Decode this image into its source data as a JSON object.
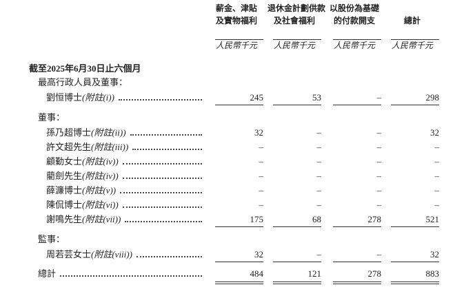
{
  "header": {
    "columns": [
      {
        "lines": [
          "薪金、津貼",
          "及實物福利"
        ],
        "unit": "人民幣千元"
      },
      {
        "lines": [
          "退休金計劃供款",
          "及社會福利"
        ],
        "unit": "人民幣千元"
      },
      {
        "lines": [
          "以股份為基礎",
          "的付款開支"
        ],
        "unit": "人民幣千元"
      },
      {
        "lines": [
          "總計"
        ],
        "unit": "人民幣千元"
      }
    ]
  },
  "period": "截至2025年6月30日止六個月",
  "groups": [
    {
      "label": "最高行政人員及董事：",
      "rows": [
        {
          "name": "劉恒博士",
          "note": "(附註(i))",
          "values": [
            "245",
            "53",
            "–",
            "298"
          ]
        }
      ]
    },
    {
      "label": "董事：",
      "rows": [
        {
          "name": "孫乃超博士",
          "note": "(附註(ii))",
          "values": [
            "32",
            "–",
            "–",
            "32"
          ]
        },
        {
          "name": "許文超先生",
          "note": "(附註(iii))",
          "values": [
            "–",
            "–",
            "–",
            "–"
          ]
        },
        {
          "name": "顧勤女士",
          "note": "(附註(iv))",
          "values": [
            "–",
            "–",
            "–",
            "–"
          ]
        },
        {
          "name": "藺劍先生",
          "note": "(附註(iv))",
          "values": [
            "–",
            "–",
            "–",
            "–"
          ]
        },
        {
          "name": "薛濂博士",
          "note": "(附註(v))",
          "values": [
            "–",
            "–",
            "–",
            "–"
          ]
        },
        {
          "name": "陳侃博士",
          "note": "(附註(vi))",
          "values": [
            "–",
            "–",
            "–",
            "–"
          ]
        },
        {
          "name": "謝鳴先生",
          "note": "(附註(vii))",
          "values": [
            "175",
            "68",
            "278",
            "521"
          ]
        }
      ]
    },
    {
      "label": "監事：",
      "rows": [
        {
          "name": "周若芸女士",
          "note": "(附註(viii))",
          "values": [
            "32",
            "–",
            "–",
            "32"
          ]
        }
      ]
    }
  ],
  "total": {
    "label": "總計",
    "values": [
      "484",
      "121",
      "278",
      "883"
    ]
  }
}
